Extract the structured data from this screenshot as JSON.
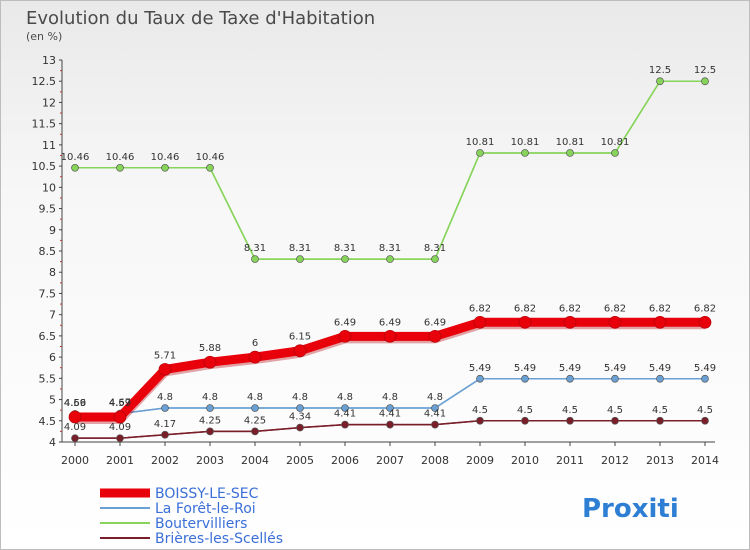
{
  "chart_data": {
    "type": "line",
    "title": "Evolution du Taux de Taxe d'Habitation",
    "subtitle": "(en %)",
    "categories": [
      "2000",
      "2001",
      "2002",
      "2003",
      "2004",
      "2005",
      "2006",
      "2007",
      "2008",
      "2009",
      "2010",
      "2011",
      "2012",
      "2013",
      "2014"
    ],
    "ylim": [
      4,
      13
    ],
    "yticks": [
      "4",
      "4.5",
      "5",
      "5.5",
      "6",
      "6.5",
      "7",
      "7.5",
      "8",
      "8.5",
      "9",
      "9.5",
      "10",
      "10.5",
      "11",
      "11.5",
      "12",
      "12.5",
      "13"
    ],
    "series": [
      {
        "name": "BOISSY-LE-SEC",
        "color": "#e8000b",
        "values": [
          4.59,
          4.59,
          5.71,
          5.88,
          6,
          6.15,
          6.49,
          6.49,
          6.49,
          6.82,
          6.82,
          6.82,
          6.82,
          6.82,
          6.82
        ],
        "labels": [
          "4.59",
          "4.59",
          "5.71",
          "5.88",
          "6",
          "6.15",
          "6.49",
          "6.49",
          "6.49",
          "6.82",
          "6.82",
          "6.82",
          "6.82",
          "6.82",
          "6.82"
        ]
      },
      {
        "name": "La Forêt-le-Roi",
        "color": "#6aa0d4",
        "values": [
          4.66,
          4.67,
          4.8,
          4.8,
          4.8,
          4.8,
          4.8,
          4.8,
          4.8,
          5.49,
          5.49,
          5.49,
          5.49,
          5.49,
          5.49
        ],
        "labels": [
          "4.66",
          "4.67",
          "4.8",
          "4.8",
          "4.8",
          "4.8",
          "4.8",
          "4.8",
          "4.8",
          "5.49",
          "5.49",
          "5.49",
          "5.49",
          "5.49",
          "5.49"
        ]
      },
      {
        "name": "Boutervilliers",
        "color": "#86d45a",
        "values": [
          10.46,
          10.46,
          10.46,
          10.46,
          8.31,
          8.31,
          8.31,
          8.31,
          8.31,
          10.81,
          10.81,
          10.81,
          10.81,
          12.5,
          12.5
        ],
        "labels": [
          "10.46",
          "10.46",
          "10.46",
          "10.46",
          "8.31",
          "8.31",
          "8.31",
          "8.31",
          "8.31",
          "10.81",
          "10.81",
          "10.81",
          "10.81",
          "12.5",
          "12.5"
        ]
      },
      {
        "name": "Brières-les-Scellés",
        "color": "#7a1f2a",
        "values": [
          4.09,
          4.09,
          4.17,
          4.25,
          4.25,
          4.34,
          4.41,
          4.41,
          4.41,
          4.5,
          4.5,
          4.5,
          4.5,
          4.5,
          4.5
        ],
        "labels": [
          "4.09",
          "4.09",
          "4.17",
          "4.25",
          "4.25",
          "4.34",
          "4.41",
          "4.41",
          "4.41",
          "4.5",
          "4.5",
          "4.5",
          "4.5",
          "4.5",
          "4.5"
        ]
      }
    ],
    "legend_placement": "bottom-left",
    "grid": false
  },
  "logo": {
    "text": "Proxiti"
  }
}
